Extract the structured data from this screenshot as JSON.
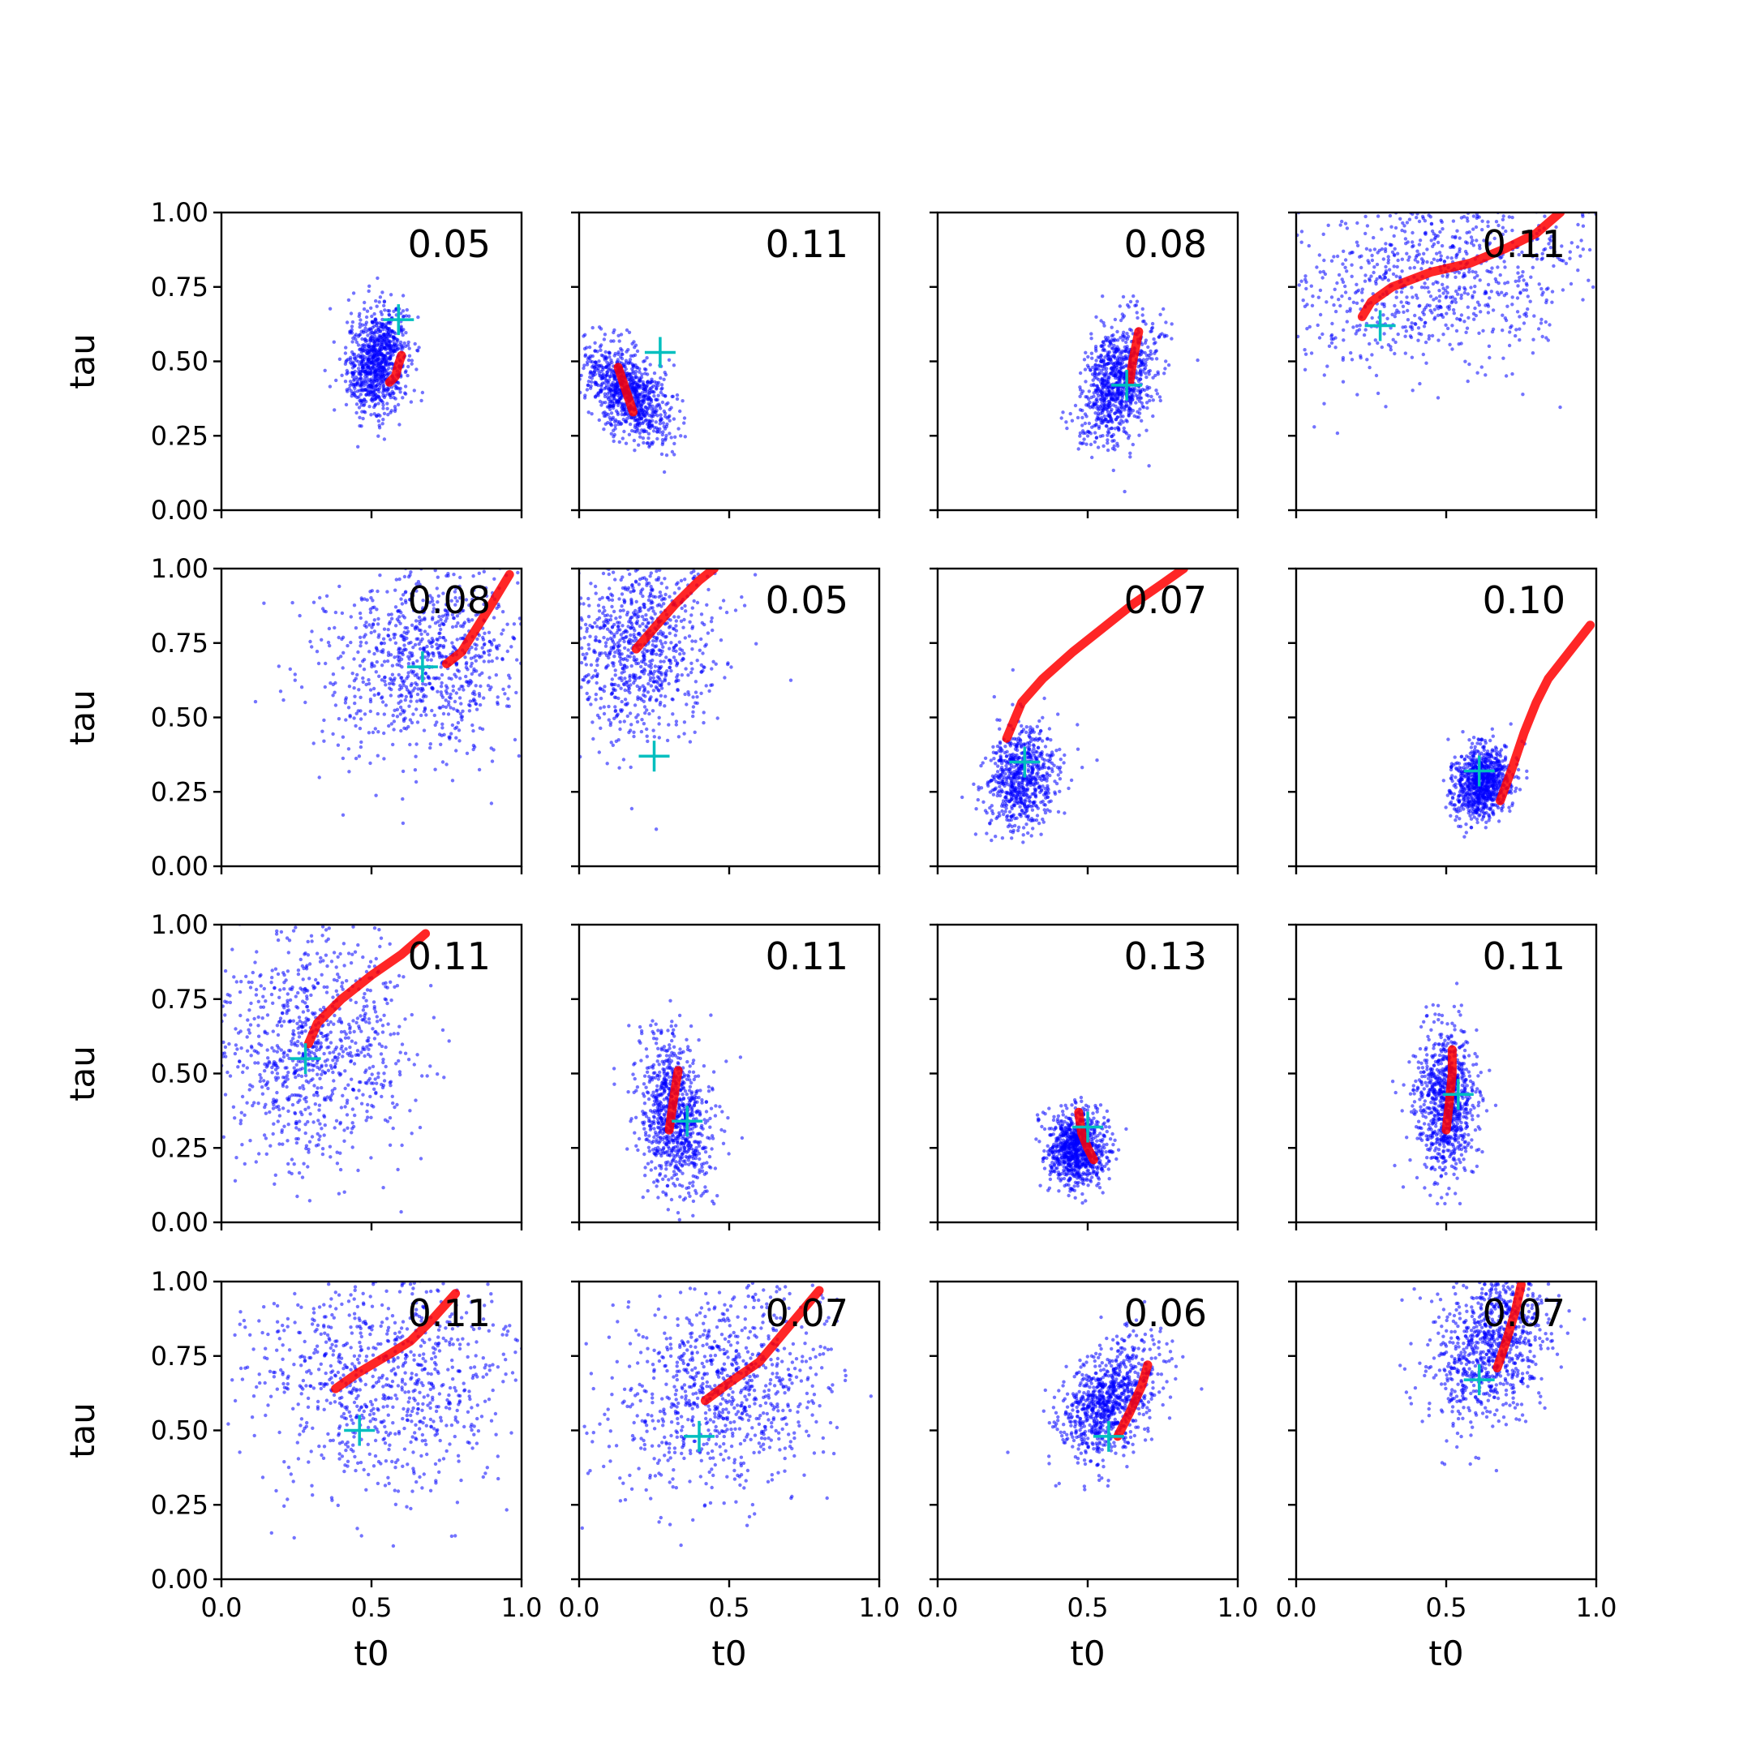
{
  "figure": {
    "background": "#ffffff"
  },
  "colors": {
    "samples": "#0000ff",
    "trajectory": "#ff0000",
    "truth_marker": "#00bfbf",
    "axes": "#000000"
  },
  "marker_names": {
    "truth": "plus-marker"
  },
  "chart_data": [
    {
      "type": "scatter",
      "row": 0,
      "col": 0,
      "annotation": "0.05",
      "xlim": [
        0,
        1
      ],
      "ylim": [
        0,
        1
      ],
      "x_ticks": [],
      "y_ticks": [
        "0.00",
        "0.25",
        "0.50",
        "0.75",
        "1.00"
      ],
      "xlabel": "",
      "ylabel": "tau",
      "cloud": {
        "center": [
          0.52,
          0.5
        ],
        "spread": [
          0.05,
          0.09
        ],
        "n": 900,
        "rho": 0.2
      },
      "truth": [
        0.59,
        0.64
      ],
      "path": [
        [
          0.56,
          0.43
        ],
        [
          0.58,
          0.45
        ],
        [
          0.59,
          0.49
        ],
        [
          0.6,
          0.52
        ]
      ]
    },
    {
      "type": "scatter",
      "row": 0,
      "col": 1,
      "annotation": "0.11",
      "xlim": [
        0,
        1
      ],
      "ylim": [
        0,
        1
      ],
      "x_ticks": [],
      "y_ticks": [],
      "xlabel": "",
      "ylabel": "",
      "cloud": {
        "center": [
          0.16,
          0.4
        ],
        "spread": [
          0.07,
          0.08
        ],
        "n": 900,
        "rho": -0.5
      },
      "truth": [
        0.27,
        0.53
      ],
      "path": [
        [
          0.13,
          0.48
        ],
        [
          0.15,
          0.42
        ],
        [
          0.17,
          0.36
        ],
        [
          0.18,
          0.33
        ]
      ]
    },
    {
      "type": "scatter",
      "row": 0,
      "col": 2,
      "annotation": "0.08",
      "xlim": [
        0,
        1
      ],
      "ylim": [
        0,
        1
      ],
      "x_ticks": [],
      "y_ticks": [],
      "xlabel": "",
      "ylabel": "",
      "cloud": {
        "center": [
          0.6,
          0.43
        ],
        "spread": [
          0.06,
          0.1
        ],
        "n": 900,
        "rho": 0.3
      },
      "truth": [
        0.63,
        0.42
      ],
      "path": [
        [
          0.64,
          0.43
        ],
        [
          0.65,
          0.5
        ],
        [
          0.67,
          0.6
        ]
      ]
    },
    {
      "type": "scatter",
      "row": 0,
      "col": 3,
      "annotation": "0.11",
      "xlim": [
        0,
        1
      ],
      "ylim": [
        0,
        1
      ],
      "x_ticks": [],
      "y_ticks": [],
      "xlabel": "",
      "ylabel": "",
      "cloud": {
        "center": [
          0.45,
          0.78
        ],
        "spread": [
          0.28,
          0.17
        ],
        "n": 900,
        "rho": 0.2
      },
      "truth": [
        0.28,
        0.62
      ],
      "path": [
        [
          0.22,
          0.65
        ],
        [
          0.25,
          0.7
        ],
        [
          0.32,
          0.75
        ],
        [
          0.45,
          0.8
        ],
        [
          0.58,
          0.83
        ],
        [
          0.7,
          0.88
        ],
        [
          0.8,
          0.93
        ],
        [
          0.88,
          1.0
        ]
      ]
    },
    {
      "type": "scatter",
      "row": 1,
      "col": 0,
      "annotation": "0.08",
      "xlim": [
        0,
        1
      ],
      "ylim": [
        0,
        1
      ],
      "x_ticks": [],
      "y_ticks": [
        "0.00",
        "0.25",
        "0.50",
        "0.75",
        "1.00"
      ],
      "xlabel": "",
      "ylabel": "tau",
      "cloud": {
        "center": [
          0.68,
          0.7
        ],
        "spread": [
          0.17,
          0.17
        ],
        "n": 900,
        "rho": 0.1
      },
      "truth": [
        0.67,
        0.67
      ],
      "path": [
        [
          0.75,
          0.68
        ],
        [
          0.8,
          0.72
        ],
        [
          0.85,
          0.8
        ],
        [
          0.9,
          0.88
        ],
        [
          0.96,
          0.98
        ]
      ]
    },
    {
      "type": "scatter",
      "row": 1,
      "col": 1,
      "annotation": "0.05",
      "xlim": [
        0,
        1
      ],
      "ylim": [
        0,
        1
      ],
      "x_ticks": [],
      "y_ticks": [],
      "xlabel": "",
      "ylabel": "",
      "cloud": {
        "center": [
          0.2,
          0.74
        ],
        "spread": [
          0.13,
          0.16
        ],
        "n": 900,
        "rho": 0.0
      },
      "truth": [
        0.25,
        0.37
      ],
      "path": [
        [
          0.19,
          0.73
        ],
        [
          0.25,
          0.8
        ],
        [
          0.32,
          0.88
        ],
        [
          0.4,
          0.96
        ],
        [
          0.45,
          1.0
        ]
      ]
    },
    {
      "type": "scatter",
      "row": 1,
      "col": 2,
      "annotation": "0.07",
      "xlim": [
        0,
        1
      ],
      "ylim": [
        0,
        1
      ],
      "x_ticks": [],
      "y_ticks": [],
      "xlabel": "",
      "ylabel": "",
      "cloud": {
        "center": [
          0.28,
          0.3
        ],
        "spread": [
          0.06,
          0.09
        ],
        "n": 700,
        "rho": 0.1
      },
      "truth": [
        0.29,
        0.35
      ],
      "path": [
        [
          0.23,
          0.43
        ],
        [
          0.28,
          0.55
        ],
        [
          0.35,
          0.63
        ],
        [
          0.45,
          0.72
        ],
        [
          0.55,
          0.8
        ],
        [
          0.65,
          0.88
        ],
        [
          0.75,
          0.95
        ],
        [
          0.82,
          1.0
        ]
      ]
    },
    {
      "type": "scatter",
      "row": 1,
      "col": 3,
      "annotation": "0.10",
      "xlim": [
        0,
        1
      ],
      "ylim": [
        0,
        1
      ],
      "x_ticks": [],
      "y_ticks": [],
      "xlabel": "",
      "ylabel": "",
      "cloud": {
        "center": [
          0.62,
          0.28
        ],
        "spread": [
          0.05,
          0.06
        ],
        "n": 900,
        "rho": 0.2
      },
      "truth": [
        0.61,
        0.32
      ],
      "path": [
        [
          0.68,
          0.22
        ],
        [
          0.72,
          0.33
        ],
        [
          0.76,
          0.45
        ],
        [
          0.8,
          0.55
        ],
        [
          0.84,
          0.63
        ],
        [
          0.98,
          0.81
        ]
      ]
    },
    {
      "type": "scatter",
      "row": 2,
      "col": 0,
      "annotation": "0.11",
      "xlim": [
        0,
        1
      ],
      "ylim": [
        0,
        1
      ],
      "x_ticks": [],
      "y_ticks": [
        "0.00",
        "0.25",
        "0.50",
        "0.75",
        "1.00"
      ],
      "xlabel": "",
      "ylabel": "tau",
      "cloud": {
        "center": [
          0.3,
          0.58
        ],
        "spread": [
          0.16,
          0.2
        ],
        "n": 900,
        "rho": 0.0
      },
      "truth": [
        0.28,
        0.55
      ],
      "path": [
        [
          0.29,
          0.6
        ],
        [
          0.32,
          0.67
        ],
        [
          0.4,
          0.75
        ],
        [
          0.5,
          0.83
        ],
        [
          0.6,
          0.9
        ],
        [
          0.68,
          0.97
        ]
      ]
    },
    {
      "type": "scatter",
      "row": 2,
      "col": 1,
      "annotation": "0.11",
      "xlim": [
        0,
        1
      ],
      "ylim": [
        0,
        1
      ],
      "x_ticks": [],
      "y_ticks": [],
      "xlabel": "",
      "ylabel": "",
      "cloud": {
        "center": [
          0.32,
          0.35
        ],
        "spread": [
          0.06,
          0.13
        ],
        "n": 900,
        "rho": -0.2
      },
      "truth": [
        0.36,
        0.34
      ],
      "path": [
        [
          0.3,
          0.31
        ],
        [
          0.31,
          0.38
        ],
        [
          0.32,
          0.45
        ],
        [
          0.33,
          0.51
        ]
      ]
    },
    {
      "type": "scatter",
      "row": 2,
      "col": 2,
      "annotation": "0.13",
      "xlim": [
        0,
        1
      ],
      "ylim": [
        0,
        1
      ],
      "x_ticks": [],
      "y_ticks": [],
      "xlabel": "",
      "ylabel": "",
      "cloud": {
        "center": [
          0.46,
          0.25
        ],
        "spread": [
          0.05,
          0.06
        ],
        "n": 900,
        "rho": 0.0
      },
      "truth": [
        0.5,
        0.32
      ],
      "path": [
        [
          0.47,
          0.37
        ],
        [
          0.48,
          0.3
        ],
        [
          0.5,
          0.25
        ],
        [
          0.52,
          0.21
        ]
      ]
    },
    {
      "type": "scatter",
      "row": 2,
      "col": 3,
      "annotation": "0.11",
      "xlim": [
        0,
        1
      ],
      "ylim": [
        0,
        1
      ],
      "x_ticks": [],
      "y_ticks": [],
      "xlabel": "",
      "ylabel": "",
      "cloud": {
        "center": [
          0.5,
          0.4
        ],
        "spread": [
          0.05,
          0.12
        ],
        "n": 900,
        "rho": 0.0
      },
      "truth": [
        0.54,
        0.43
      ],
      "path": [
        [
          0.5,
          0.31
        ],
        [
          0.51,
          0.4
        ],
        [
          0.52,
          0.5
        ],
        [
          0.52,
          0.58
        ]
      ]
    },
    {
      "type": "scatter",
      "row": 3,
      "col": 0,
      "annotation": "0.11",
      "xlim": [
        0,
        1
      ],
      "ylim": [
        0,
        1
      ],
      "x_ticks": [
        "0.0",
        "0.5",
        "1.0"
      ],
      "y_ticks": [
        "0.00",
        "0.25",
        "0.50",
        "0.75",
        "1.00"
      ],
      "xlabel": "t0",
      "ylabel": "tau",
      "cloud": {
        "center": [
          0.55,
          0.68
        ],
        "spread": [
          0.22,
          0.19
        ],
        "n": 900,
        "rho": 0.0
      },
      "truth": [
        0.46,
        0.5
      ],
      "path": [
        [
          0.38,
          0.64
        ],
        [
          0.45,
          0.69
        ],
        [
          0.55,
          0.75
        ],
        [
          0.63,
          0.8
        ],
        [
          0.7,
          0.87
        ],
        [
          0.78,
          0.96
        ]
      ]
    },
    {
      "type": "scatter",
      "row": 3,
      "col": 1,
      "annotation": "0.07",
      "xlim": [
        0,
        1
      ],
      "ylim": [
        0,
        1
      ],
      "x_ticks": [
        "0.0",
        "0.5",
        "1.0"
      ],
      "y_ticks": [],
      "xlabel": "t0",
      "ylabel": "",
      "cloud": {
        "center": [
          0.48,
          0.65
        ],
        "spread": [
          0.18,
          0.18
        ],
        "n": 900,
        "rho": 0.2
      },
      "truth": [
        0.4,
        0.48
      ],
      "path": [
        [
          0.42,
          0.6
        ],
        [
          0.5,
          0.66
        ],
        [
          0.6,
          0.73
        ],
        [
          0.7,
          0.85
        ],
        [
          0.8,
          0.97
        ]
      ]
    },
    {
      "type": "scatter",
      "row": 3,
      "col": 2,
      "annotation": "0.06",
      "xlim": [
        0,
        1
      ],
      "ylim": [
        0,
        1
      ],
      "x_ticks": [
        "0.0",
        "0.5",
        "1.0"
      ],
      "y_ticks": [],
      "xlabel": "t0",
      "ylabel": "",
      "cloud": {
        "center": [
          0.57,
          0.6
        ],
        "spread": [
          0.08,
          0.1
        ],
        "n": 900,
        "rho": 0.4
      },
      "truth": [
        0.57,
        0.48
      ],
      "path": [
        [
          0.6,
          0.48
        ],
        [
          0.64,
          0.56
        ],
        [
          0.68,
          0.65
        ],
        [
          0.7,
          0.72
        ]
      ]
    },
    {
      "type": "scatter",
      "row": 3,
      "col": 3,
      "annotation": "0.07",
      "xlim": [
        0,
        1
      ],
      "ylim": [
        0,
        1
      ],
      "x_ticks": [
        "0.0",
        "0.5",
        "1.0"
      ],
      "y_ticks": [],
      "xlabel": "t0",
      "ylabel": "",
      "cloud": {
        "center": [
          0.65,
          0.78
        ],
        "spread": [
          0.1,
          0.14
        ],
        "n": 900,
        "rho": 0.3
      },
      "truth": [
        0.61,
        0.67
      ],
      "path": [
        [
          0.67,
          0.71
        ],
        [
          0.7,
          0.8
        ],
        [
          0.73,
          0.9
        ],
        [
          0.75,
          0.99
        ]
      ]
    }
  ]
}
